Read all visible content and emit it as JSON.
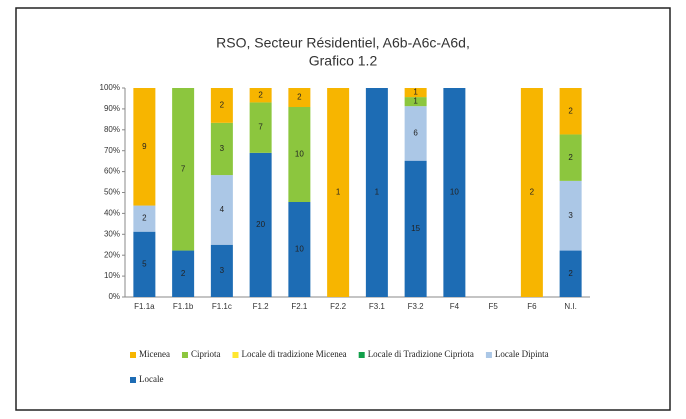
{
  "chart_data": {
    "type": "bar",
    "stacking": "percent",
    "title": [
      "RSO, Secteur Résidentiel, A6b-A6c-A6d,",
      "Grafico 1.2"
    ],
    "categories": [
      "F1.1a",
      "F1.1b",
      "F1.1c",
      "F1.2",
      "F2.1",
      "F2.2",
      "F3.1",
      "F3.2",
      "F4",
      "F5",
      "F6",
      "N.I."
    ],
    "series": [
      {
        "name": "Micenea",
        "color": "#f7b500",
        "values": [
          9,
          null,
          2,
          2,
          2,
          1,
          null,
          1,
          null,
          null,
          2,
          2
        ]
      },
      {
        "name": "Cipriota",
        "color": "#8cc63e",
        "values": [
          null,
          7,
          3,
          7,
          10,
          null,
          null,
          1,
          null,
          null,
          null,
          2
        ]
      },
      {
        "name": "Locale di tradizione Micenea",
        "color": "#ffe62e",
        "values": [
          null,
          null,
          null,
          null,
          null,
          null,
          null,
          null,
          null,
          null,
          null,
          null
        ]
      },
      {
        "name": "Locale di Tradizione Cipriota",
        "color": "#12a04a",
        "values": [
          null,
          null,
          null,
          null,
          null,
          null,
          null,
          null,
          null,
          null,
          null,
          null
        ]
      },
      {
        "name": "Locale Dipinta",
        "color": "#abc7e6",
        "values": [
          2,
          null,
          4,
          null,
          null,
          null,
          null,
          6,
          null,
          null,
          null,
          3
        ]
      },
      {
        "name": "Locale",
        "color": "#1d6cb4",
        "values": [
          5,
          2,
          3,
          20,
          10,
          null,
          1,
          15,
          10,
          null,
          null,
          2
        ]
      }
    ],
    "ylim": [
      0,
      100
    ],
    "yticks": [
      {
        "value": 0,
        "label": "0%"
      },
      {
        "value": 10,
        "label": "10%"
      },
      {
        "value": 20,
        "label": "20%"
      },
      {
        "value": 30,
        "label": "30%"
      },
      {
        "value": 40,
        "label": "40%"
      },
      {
        "value": 50,
        "label": "50%"
      },
      {
        "value": 60,
        "label": "60%"
      },
      {
        "value": 70,
        "label": "70%"
      },
      {
        "value": 80,
        "label": "80%"
      },
      {
        "value": 90,
        "label": "90%"
      },
      {
        "value": 100,
        "label": "100%"
      }
    ],
    "legend": "bottom"
  }
}
